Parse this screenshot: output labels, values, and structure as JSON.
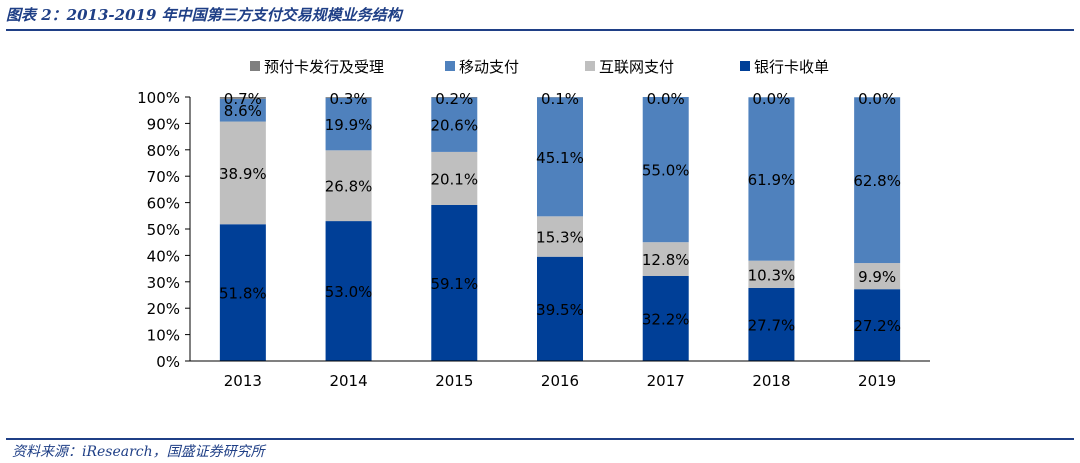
{
  "figure": {
    "title": "图表 2：2013-2019 年中国第三方支付交易规模业务结构",
    "source": "资料来源：iResearch，国盛证券研究所"
  },
  "colors": {
    "prepaid": "#7f7f7f",
    "mobile": "#4f81bd",
    "internet": "#bfbfbf",
    "bankcard": "#003f97",
    "rule": "#1f3f86"
  },
  "chart_data": {
    "type": "bar",
    "stacked": true,
    "categories": [
      "2013",
      "2014",
      "2015",
      "2016",
      "2017",
      "2018",
      "2019"
    ],
    "ylim": [
      0,
      100
    ],
    "yticks": [
      "0%",
      "10%",
      "20%",
      "30%",
      "40%",
      "50%",
      "60%",
      "70%",
      "80%",
      "90%",
      "100%"
    ],
    "legend_position": "top",
    "series": [
      {
        "name": "银行卡收单",
        "color_key": "bankcard",
        "values": [
          51.8,
          53.0,
          59.1,
          39.5,
          32.2,
          27.7,
          27.2
        ],
        "labels": [
          "51.8%",
          "53.0%",
          "59.1%",
          "39.5%",
          "32.2%",
          "27.7%",
          "27.2%"
        ]
      },
      {
        "name": "互联网支付",
        "color_key": "internet",
        "values": [
          38.9,
          26.8,
          20.1,
          15.3,
          12.8,
          10.3,
          9.9
        ],
        "labels": [
          "38.9%",
          "26.8%",
          "20.1%",
          "15.3%",
          "12.8%",
          "10.3%",
          "9.9%"
        ]
      },
      {
        "name": "移动支付",
        "color_key": "mobile",
        "values": [
          8.6,
          19.9,
          20.6,
          45.1,
          55.0,
          61.9,
          62.8
        ],
        "labels": [
          "8.6%",
          "19.9%",
          "20.6%",
          "45.1%",
          "55.0%",
          "61.9%",
          "62.8%"
        ]
      },
      {
        "name": "预付卡发行及受理",
        "color_key": "prepaid",
        "values": [
          0.7,
          0.3,
          0.2,
          0.1,
          0.0,
          0.0,
          0.0
        ],
        "labels": [
          "0.7%",
          "0.3%",
          "0.2%",
          "0.1%",
          "0.0%",
          "0.0%",
          "0.0%"
        ]
      }
    ],
    "legend_order": [
      "预付卡发行及受理",
      "移动支付",
      "互联网支付",
      "银行卡收单"
    ]
  }
}
